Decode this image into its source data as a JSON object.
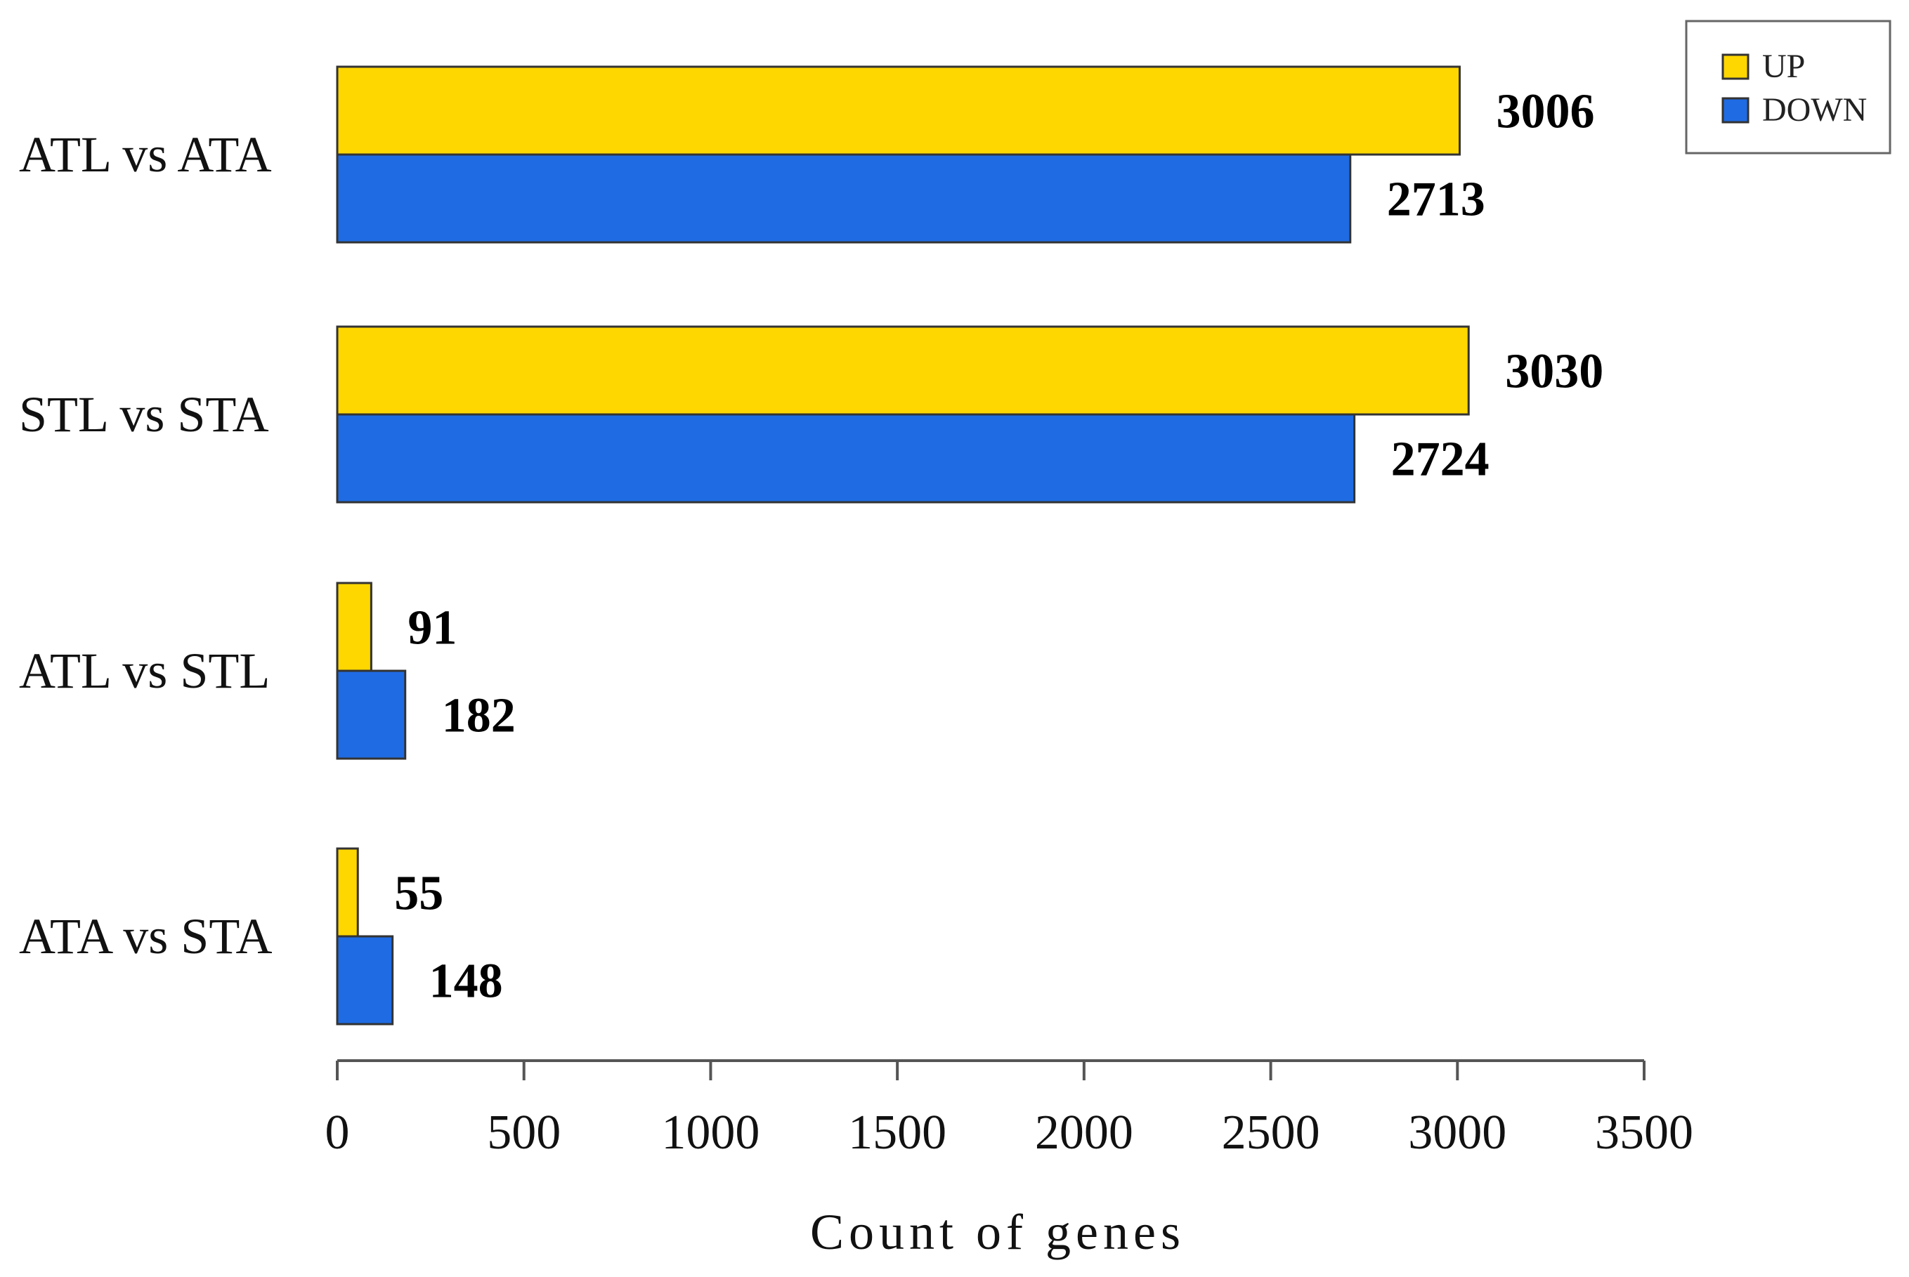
{
  "chart_data": {
    "type": "bar",
    "orientation": "horizontal",
    "categories": [
      "ATL vs ATA",
      "STL vs STA",
      "ATL vs STL",
      "ATA vs STA"
    ],
    "series": [
      {
        "name": "UP",
        "color": "#FFD700",
        "values": [
          3006,
          3030,
          91,
          55
        ]
      },
      {
        "name": "DOWN",
        "color": "#1F6BE3",
        "values": [
          2713,
          2724,
          182,
          148
        ]
      }
    ],
    "value_labels": {
      "UP": [
        "3006",
        "3030",
        "91",
        "55"
      ],
      "DOWN": [
        "2713",
        "2724",
        "182",
        "148"
      ]
    },
    "xlabel": "Count of genes",
    "ylabel": "",
    "xlim": [
      0,
      3500
    ],
    "xticks": [
      0,
      500,
      1000,
      1500,
      2000,
      2500,
      3000,
      3500
    ],
    "xtick_labels": [
      "0",
      "500",
      "1000",
      "1500",
      "2000",
      "2500",
      "3000",
      "3500"
    ],
    "grid": false,
    "legend_position": "top-right",
    "legend": [
      {
        "label": "UP",
        "color": "#FFD700"
      },
      {
        "label": "DOWN",
        "color": "#1F6BE3"
      }
    ]
  }
}
